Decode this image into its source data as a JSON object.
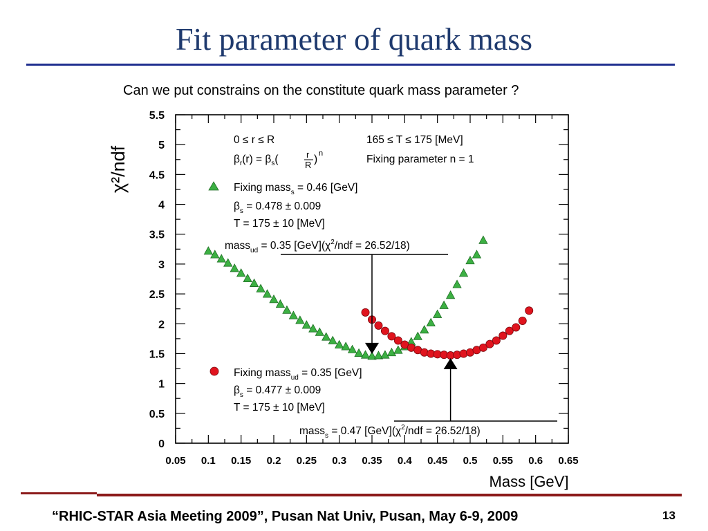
{
  "slide": {
    "title": "Fit parameter of quark mass",
    "subtitle": "Can we put constrains on the constitute quark mass parameter ?",
    "footer": "“RHIC-STAR Asia Meeting 2009”, Pusan Nat Univ, Pusan, May 6-9, 2009",
    "page_number": "13"
  },
  "colors": {
    "title": "#1f3a6e",
    "title_rule": "#1f2f8f",
    "footer_rule": "#8b1a1a",
    "green": "#3cb043",
    "red": "#e0141e"
  },
  "chart_data": {
    "type": "scatter",
    "xlabel": "Mass [GeV]",
    "ylabel": "χ²/ndf",
    "xlim": [
      0.05,
      0.65
    ],
    "ylim": [
      0,
      5.5
    ],
    "x_ticks": [
      "0.05",
      "0.1",
      "0.15",
      "0.2",
      "0.25",
      "0.3",
      "0.35",
      "0.4",
      "0.45",
      "0.5",
      "0.55",
      "0.6",
      "0.65"
    ],
    "y_ticks": [
      "0",
      "0.5",
      "1",
      "1.5",
      "2",
      "2.5",
      "3",
      "3.5",
      "4",
      "4.5",
      "5",
      "5.5"
    ],
    "grid": false,
    "series": [
      {
        "marker": "triangle",
        "color": "#3cb043",
        "points": [
          [
            0.1,
            3.22
          ],
          [
            0.11,
            3.16
          ],
          [
            0.12,
            3.09
          ],
          [
            0.13,
            3.02
          ],
          [
            0.14,
            2.93
          ],
          [
            0.15,
            2.85
          ],
          [
            0.16,
            2.76
          ],
          [
            0.17,
            2.68
          ],
          [
            0.18,
            2.59
          ],
          [
            0.19,
            2.5
          ],
          [
            0.2,
            2.41
          ],
          [
            0.21,
            2.33
          ],
          [
            0.22,
            2.23
          ],
          [
            0.23,
            2.14
          ],
          [
            0.24,
            2.06
          ],
          [
            0.25,
            1.98
          ],
          [
            0.26,
            1.92
          ],
          [
            0.27,
            1.86
          ],
          [
            0.28,
            1.78
          ],
          [
            0.29,
            1.72
          ],
          [
            0.3,
            1.65
          ],
          [
            0.31,
            1.62
          ],
          [
            0.32,
            1.57
          ],
          [
            0.33,
            1.51
          ],
          [
            0.34,
            1.48
          ],
          [
            0.35,
            1.46
          ],
          [
            0.36,
            1.47
          ],
          [
            0.37,
            1.48
          ],
          [
            0.38,
            1.52
          ],
          [
            0.39,
            1.56
          ],
          [
            0.4,
            1.62
          ],
          [
            0.41,
            1.7
          ],
          [
            0.42,
            1.79
          ],
          [
            0.43,
            1.9
          ],
          [
            0.44,
            2.02
          ],
          [
            0.45,
            2.16
          ],
          [
            0.46,
            2.31
          ],
          [
            0.47,
            2.48
          ],
          [
            0.48,
            2.66
          ],
          [
            0.49,
            2.85
          ],
          [
            0.5,
            3.06
          ],
          [
            0.51,
            3.16
          ],
          [
            0.52,
            3.4
          ]
        ]
      },
      {
        "marker": "circle",
        "color": "#e0141e",
        "points": [
          [
            0.34,
            2.19
          ],
          [
            0.35,
            2.07
          ],
          [
            0.36,
            1.97
          ],
          [
            0.37,
            1.88
          ],
          [
            0.38,
            1.79
          ],
          [
            0.39,
            1.72
          ],
          [
            0.4,
            1.65
          ],
          [
            0.41,
            1.6
          ],
          [
            0.42,
            1.56
          ],
          [
            0.43,
            1.52
          ],
          [
            0.44,
            1.5
          ],
          [
            0.45,
            1.49
          ],
          [
            0.46,
            1.48
          ],
          [
            0.47,
            1.47
          ],
          [
            0.48,
            1.48
          ],
          [
            0.49,
            1.5
          ],
          [
            0.5,
            1.52
          ],
          [
            0.51,
            1.56
          ],
          [
            0.52,
            1.6
          ],
          [
            0.53,
            1.66
          ],
          [
            0.54,
            1.72
          ],
          [
            0.55,
            1.8
          ],
          [
            0.56,
            1.88
          ],
          [
            0.57,
            1.94
          ],
          [
            0.58,
            2.05
          ],
          [
            0.59,
            2.22
          ]
        ]
      }
    ],
    "annotations": {
      "range_r": "0 ≤ r ≤ R",
      "range_T": "165 ≤ T ≤ 175 [MeV]",
      "beta_pre": "β",
      "beta_r_sub": "r",
      "beta_mid": "(r) = β",
      "beta_s_sub": "s",
      "frac_num": "r",
      "frac_den": "R",
      "exp_n": "n",
      "fixing_n": "Fixing parameter n = 1",
      "green_legend_a": "Fixing mass",
      "green_legend_sub": "s",
      "green_legend_b": " = 0.46 [GeV]",
      "green_beta_sym": "β",
      "green_beta_sub": "s",
      "green_beta_val": " = 0.478 ± 0.009",
      "green_T": "T = 175 ± 10 [MeV]",
      "red_legend_a": "Fixing mass",
      "red_legend_sub": "ud",
      "red_legend_b": " = 0.35 [GeV]",
      "red_beta_sym": "β",
      "red_beta_sub": "s",
      "red_beta_val": " = 0.477 ± 0.009",
      "red_T": "T = 175 ± 10 [MeV]",
      "min_ud_a": "mass",
      "min_ud_sub": "ud",
      "min_ud_b": " = 0.35 [GeV](χ",
      "min_ud_sup": "2",
      "min_ud_c": "/ndf = 26.52/18)",
      "min_s_a": "mass",
      "min_s_sub": "s",
      "min_s_b": " = 0.47 [GeV](χ",
      "min_s_sup": "2",
      "min_s_c": "/ndf = 26.52/18)",
      "arrow_ud_x": 0.35,
      "arrow_ud_y": 1.46,
      "arrow_s_x": 0.47,
      "arrow_s_y": 1.47
    }
  }
}
